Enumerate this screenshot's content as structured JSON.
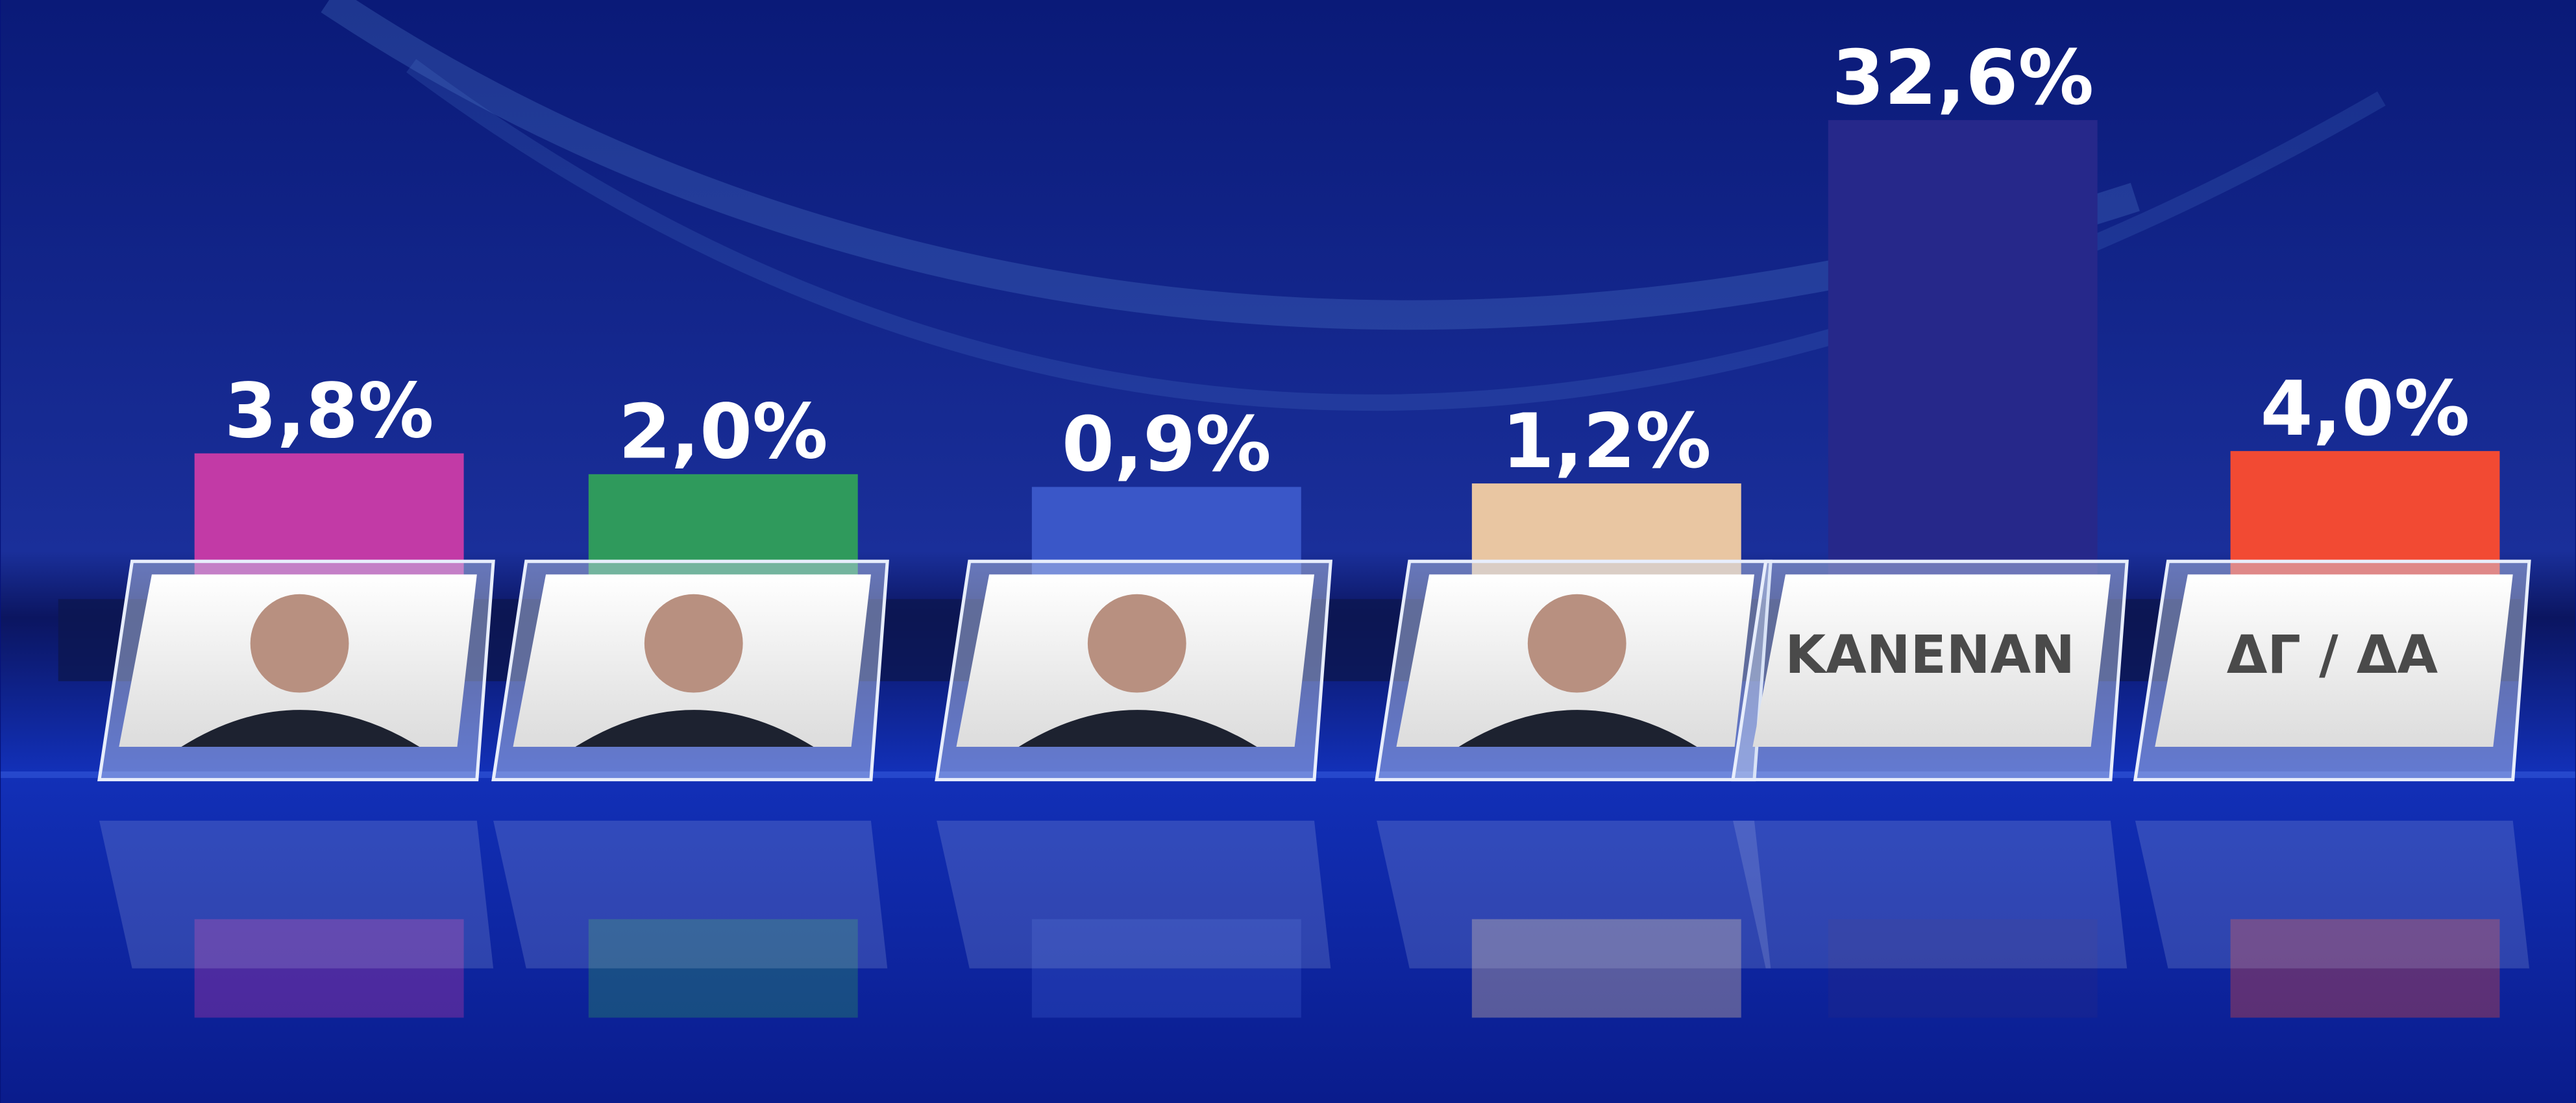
{
  "chart_data": {
    "type": "bar",
    "categories": [
      null,
      null,
      null,
      null,
      "KANENAN",
      "ΔΓ / ΔΑ"
    ],
    "series": [
      {
        "values": [
          3.8,
          2.0,
          0.9,
          1.2,
          32.6,
          4.0
        ],
        "value_labels": [
          "3,8%",
          "2,0%",
          "0,9%",
          "1,2%",
          "32,6%",
          "4,0%"
        ],
        "colors": [
          "#c23aa6",
          "#2f9a5c",
          "#3a57c8",
          "#e9c6a2",
          "#26288a",
          "#f24a33"
        ]
      }
    ]
  }
}
